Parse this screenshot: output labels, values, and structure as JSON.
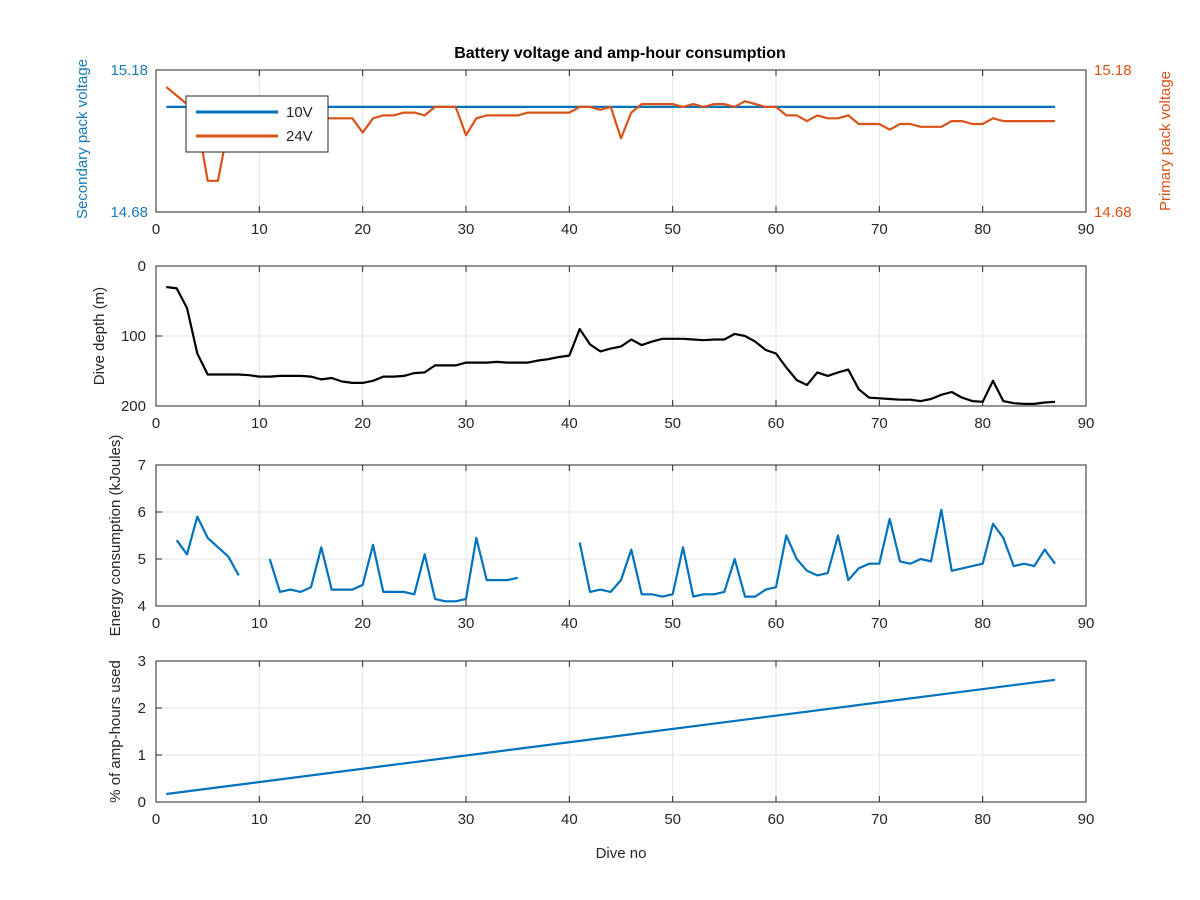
{
  "chart_data": [
    {
      "type": "line",
      "title": "Battery voltage and amp-hour consumption",
      "ylabel_left": "Secondary pack voltage",
      "ylabel_right": "Primary pack voltage",
      "xlim": [
        0,
        90
      ],
      "xticks": [
        "0",
        "10",
        "20",
        "30",
        "40",
        "50",
        "60",
        "70",
        "80",
        "90"
      ],
      "ylim_left": [
        14.68,
        15.18
      ],
      "ylim_right": [
        14.68,
        15.18
      ],
      "yticks_left": [
        "14.68",
        "15.18"
      ],
      "yticks_right": [
        "14.68",
        "15.18"
      ],
      "grid": true,
      "legend": "top-left",
      "series": [
        {
          "name": "10V",
          "color": "#0072bd",
          "x": [
            1,
            87
          ],
          "y": [
            15.05,
            15.05
          ]
        },
        {
          "name": "24V",
          "color": "#d95319",
          "x": [
            1,
            2,
            3,
            4,
            5,
            6,
            7,
            8,
            9,
            10,
            11,
            12,
            13,
            14,
            15,
            16,
            17,
            18,
            19,
            20,
            21,
            22,
            23,
            24,
            25,
            26,
            27,
            28,
            29,
            30,
            31,
            32,
            33,
            34,
            35,
            36,
            37,
            38,
            39,
            40,
            41,
            42,
            43,
            44,
            45,
            46,
            47,
            48,
            49,
            50,
            51,
            52,
            53,
            54,
            55,
            56,
            57,
            58,
            59,
            60,
            61,
            62,
            63,
            64,
            65,
            66,
            67,
            68,
            69,
            70,
            71,
            72,
            73,
            74,
            75,
            76,
            77,
            78,
            79,
            80,
            81,
            82,
            83,
            84,
            85,
            86,
            87
          ],
          "y": [
            15.12,
            15.09,
            15.06,
            15.0,
            14.79,
            14.79,
            14.98,
            15.02,
            15.01,
            15.01,
            15.01,
            15.01,
            15.01,
            15.01,
            15.01,
            15.01,
            15.01,
            15.01,
            15.01,
            14.96,
            15.01,
            15.02,
            15.02,
            15.03,
            15.03,
            15.02,
            15.05,
            15.05,
            15.05,
            14.95,
            15.01,
            15.02,
            15.02,
            15.02,
            15.02,
            15.03,
            15.03,
            15.03,
            15.03,
            15.03,
            15.05,
            15.05,
            15.04,
            15.05,
            14.94,
            15.03,
            15.06,
            15.06,
            15.06,
            15.06,
            15.05,
            15.06,
            15.05,
            15.06,
            15.06,
            15.05,
            15.07,
            15.06,
            15.05,
            15.05,
            15.02,
            15.02,
            15.0,
            15.02,
            15.01,
            15.01,
            15.02,
            14.99,
            14.99,
            14.99,
            14.97,
            14.99,
            14.99,
            14.98,
            14.98,
            14.98,
            15.0,
            15.0,
            14.99,
            14.99,
            15.01,
            15.0,
            15.0,
            15.0,
            15.0,
            15.0,
            15.0
          ]
        }
      ]
    },
    {
      "type": "line",
      "ylabel": "Dive depth (m)",
      "xlim": [
        0,
        90
      ],
      "xticks": [
        "0",
        "10",
        "20",
        "30",
        "40",
        "50",
        "60",
        "70",
        "80",
        "90"
      ],
      "ylim": [
        0,
        200
      ],
      "yticks": [
        "0",
        "100",
        "200"
      ],
      "y_reversed": true,
      "grid": true,
      "series": [
        {
          "color": "#000000",
          "x": [
            1,
            2,
            3,
            4,
            5,
            6,
            7,
            8,
            9,
            10,
            11,
            12,
            13,
            14,
            15,
            16,
            17,
            18,
            19,
            20,
            21,
            22,
            23,
            24,
            25,
            26,
            27,
            28,
            29,
            30,
            31,
            32,
            33,
            34,
            35,
            36,
            37,
            38,
            39,
            40,
            41,
            42,
            43,
            44,
            45,
            46,
            47,
            48,
            49,
            50,
            51,
            52,
            53,
            54,
            55,
            56,
            57,
            58,
            59,
            60,
            61,
            62,
            63,
            64,
            65,
            66,
            67,
            68,
            69,
            70,
            71,
            72,
            73,
            74,
            75,
            76,
            77,
            78,
            79,
            80,
            81,
            82,
            83,
            84,
            85,
            86,
            87
          ],
          "y": [
            30,
            32,
            60,
            125,
            155,
            155,
            155,
            155,
            156,
            158,
            158,
            157,
            157,
            157,
            158,
            162,
            160,
            165,
            167,
            167,
            164,
            158,
            158,
            157,
            153,
            152,
            142,
            142,
            142,
            138,
            138,
            138,
            137,
            138,
            138,
            138,
            135,
            133,
            130,
            128,
            90,
            112,
            122,
            118,
            115,
            105,
            113,
            108,
            104,
            104,
            104,
            105,
            106,
            105,
            105,
            97,
            100,
            108,
            120,
            125,
            145,
            163,
            170,
            152,
            157,
            152,
            148,
            176,
            188,
            189,
            190,
            191,
            191,
            193,
            190,
            184,
            180,
            188,
            193,
            194,
            164,
            193,
            196,
            197,
            197,
            195,
            194
          ]
        }
      ]
    },
    {
      "type": "line",
      "ylabel": "Energy consumption (kJoules)",
      "xlim": [
        0,
        90
      ],
      "xticks": [
        "0",
        "10",
        "20",
        "30",
        "40",
        "50",
        "60",
        "70",
        "80",
        "90"
      ],
      "ylim": [
        4,
        7
      ],
      "yticks": [
        "4",
        "5",
        "6",
        "7"
      ],
      "grid": true,
      "series": [
        {
          "color": "#0072bd",
          "segments": [
            {
              "x": [
                2,
                3,
                4,
                5,
                6,
                7,
                8
              ],
              "y": [
                5.4,
                5.1,
                5.9,
                5.45,
                5.25,
                5.05,
                4.65
              ]
            },
            {
              "x": [
                11,
                12,
                13,
                14,
                15,
                16,
                17,
                18,
                19,
                20,
                21,
                22,
                23,
                24,
                25,
                26,
                27,
                28,
                29,
                30,
                31,
                32,
                33,
                34,
                35
              ],
              "y": [
                5.0,
                4.3,
                4.35,
                4.3,
                4.4,
                5.25,
                4.35,
                4.35,
                4.35,
                4.45,
                5.3,
                4.3,
                4.3,
                4.3,
                4.25,
                5.1,
                4.15,
                4.1,
                4.1,
                4.15,
                5.45,
                4.55,
                4.55,
                4.55,
                4.6
              ]
            },
            {
              "x": [
                41,
                42,
                43,
                44,
                45,
                46,
                47,
                48,
                49,
                50,
                51,
                52,
                53,
                54,
                55,
                56,
                57,
                58,
                59,
                60,
                61,
                62,
                63,
                64,
                65,
                66,
                67,
                68,
                69,
                70,
                71,
                72,
                73,
                74,
                75,
                76,
                77,
                78,
                79,
                80,
                81,
                82,
                83,
                84,
                85,
                86,
                87
              ],
              "y": [
                5.35,
                4.3,
                4.35,
                4.3,
                4.55,
                5.2,
                4.25,
                4.25,
                4.2,
                4.25,
                5.25,
                4.2,
                4.25,
                4.25,
                4.3,
                5.0,
                4.2,
                4.2,
                4.35,
                4.4,
                5.5,
                5.0,
                4.75,
                4.65,
                4.7,
                5.5,
                4.55,
                4.8,
                4.9,
                4.9,
                5.85,
                4.95,
                4.9,
                5.0,
                4.95,
                6.05,
                4.75,
                4.8,
                4.85,
                4.9,
                5.75,
                5.45,
                4.85,
                4.9,
                4.85,
                5.2,
                4.9
              ]
            }
          ]
        }
      ]
    },
    {
      "type": "line",
      "xlabel": "Dive no",
      "ylabel": "% of amp-hours used",
      "xlim": [
        0,
        90
      ],
      "xticks": [
        "0",
        "10",
        "20",
        "30",
        "40",
        "50",
        "60",
        "70",
        "80",
        "90"
      ],
      "ylim": [
        0,
        3
      ],
      "yticks": [
        "0",
        "1",
        "2",
        "3"
      ],
      "grid": true,
      "series": [
        {
          "color": "#0072bd",
          "x": [
            1,
            87
          ],
          "y": [
            0.17,
            2.6
          ]
        }
      ]
    }
  ]
}
